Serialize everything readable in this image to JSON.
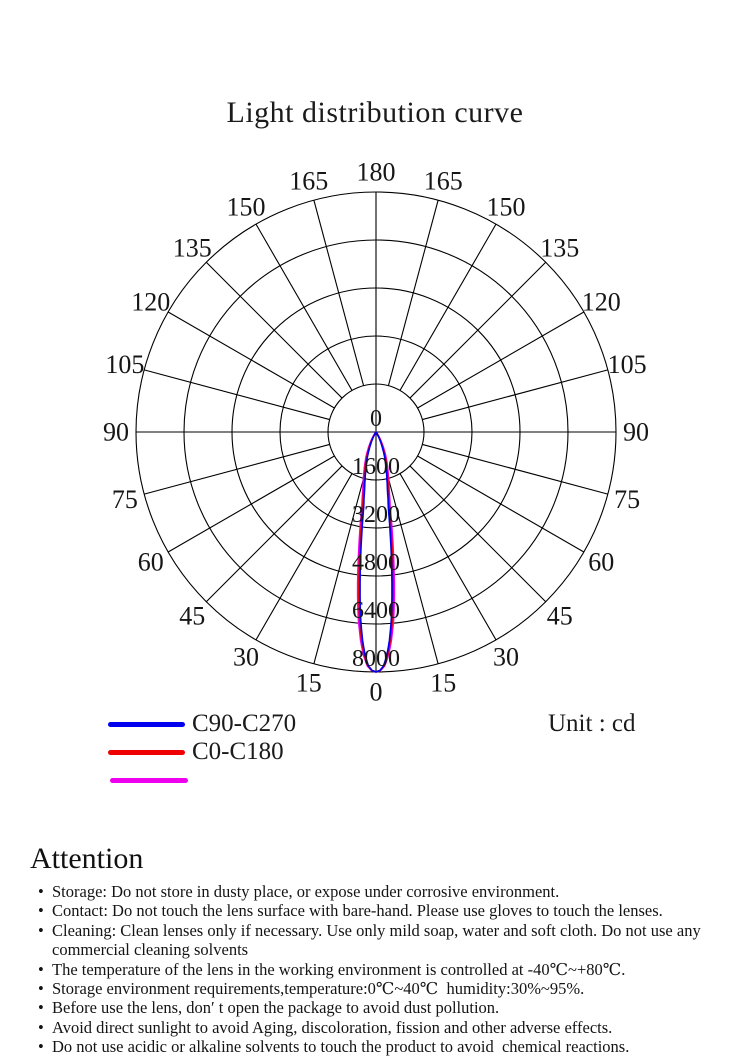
{
  "title": "Light distribution curve",
  "unit_label": "Unit : cd",
  "legend": [
    {
      "label": "C90-C270",
      "color": "#0000ee"
    },
    {
      "label": "C0-C180",
      "color": "#ee0000"
    },
    {
      "label": "",
      "color": "#ee00ee"
    }
  ],
  "chart_data": {
    "type": "polar_light_distribution",
    "title": "Light distribution curve",
    "unit": "cd",
    "grid_color": "#000000",
    "label_color": "#161616",
    "angle_ticks_deg": [
      0,
      15,
      30,
      45,
      60,
      75,
      90,
      105,
      120,
      135,
      150,
      165,
      180
    ],
    "radial_ticks_cd": [
      0,
      1600,
      3200,
      4800,
      6400,
      8000
    ],
    "r_max_cd": 8000,
    "beam_profile": {
      "comment": "candela vs angle from nadir (0 deg = straight down), symmetric lobe peaking at 8000 cd",
      "angles_deg": [
        0,
        1,
        2,
        3,
        4,
        5,
        6,
        7,
        8,
        9,
        10,
        12,
        14,
        16,
        18,
        20,
        23,
        26,
        29,
        32,
        35,
        38
      ],
      "intensity_cd": [
        8000,
        7950,
        7800,
        7450,
        6950,
        6300,
        5500,
        4650,
        3850,
        3150,
        2550,
        1980,
        1620,
        1360,
        1130,
        930,
        650,
        420,
        240,
        110,
        30,
        0
      ]
    },
    "series": [
      {
        "name": "C90-C270",
        "color": "#0000ee",
        "spread": 0.93
      },
      {
        "name": "C0-C180",
        "color": "#ee0000",
        "spread": 0.99
      },
      {
        "name": "",
        "color": "#ee00ee",
        "spread": 1.06
      }
    ]
  },
  "attention": {
    "heading": "Attention",
    "items": [
      "Storage: Do not store in dusty place, or expose under corrosive environment.",
      "Contact: Do not touch the lens surface with bare-hand. Please use gloves to touch the lenses.",
      "Cleaning: Clean lenses only if necessary. Use only mild soap, water and soft cloth. Do not use any commercial cleaning solvents",
      "The temperature of the lens in the working environment is controlled at -40℃~+80℃.",
      "Storage environment requirements,temperature:0℃~40℃  humidity:30%~95%.",
      "Before use the lens, don′ t open the package to avoid dust pollution.",
      "Avoid direct sunlight to avoid Aging, discoloration, fission and other adverse effects.",
      "Do not use acidic or alkaline solvents to touch the product to avoid  chemical reactions."
    ]
  }
}
